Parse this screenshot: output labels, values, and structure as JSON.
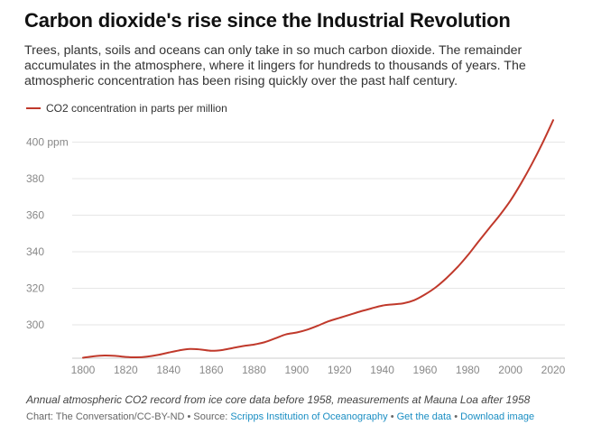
{
  "header": {
    "title": "Carbon dioxide's rise since the Industrial Revolution",
    "subtitle": "Trees, plants, soils and oceans can only take in so much carbon dioxide. The remainder accumulates in the atmosphere, where it lingers for hundreds to thousands of years. The atmospheric concentration has been rising quickly over the past half century."
  },
  "footer": {
    "note": "Annual atmospheric CO2 record from ice core data before 1958, measurements at Mauna Loa after 1958",
    "credit_prefix": "Chart: The Conversation/CC-BY-ND • Source: ",
    "source_link": "Scripps Institution of Oceanography",
    "sep1": " • ",
    "get_data": "Get the data",
    "sep2": " • ",
    "download": "Download image"
  },
  "colors": {
    "line": "#c0392b",
    "grid": "#e6e6e6",
    "link": "#1a8ec3"
  },
  "chart_data": {
    "type": "line",
    "title": "Carbon dioxide's rise since the Industrial Revolution",
    "xlabel": "",
    "ylabel": "",
    "xlim": [
      1800,
      2020
    ],
    "ylim": [
      281,
      412
    ],
    "grid": true,
    "legend_position": "top-left",
    "x_ticks": [
      1800,
      1820,
      1840,
      1860,
      1880,
      1900,
      1920,
      1940,
      1960,
      1980,
      2000,
      2020
    ],
    "y_ticks": [
      300,
      320,
      340,
      360,
      380,
      400
    ],
    "y_tick_labels": [
      "300",
      "320",
      "340",
      "360",
      "380",
      "400 ppm"
    ],
    "series": [
      {
        "name": "CO2 concentration in parts per million",
        "x": [
          1800,
          1805,
          1810,
          1815,
          1820,
          1825,
          1830,
          1835,
          1840,
          1845,
          1850,
          1855,
          1860,
          1865,
          1870,
          1875,
          1880,
          1885,
          1890,
          1895,
          1900,
          1905,
          1910,
          1915,
          1920,
          1925,
          1930,
          1935,
          1940,
          1945,
          1950,
          1955,
          1960,
          1965,
          1970,
          1975,
          1980,
          1985,
          1990,
          1995,
          2000,
          2005,
          2010,
          2015,
          2020
        ],
        "values": [
          282,
          282.8,
          283.2,
          283.0,
          282.4,
          282.2,
          282.6,
          283.5,
          284.8,
          286.0,
          286.8,
          286.5,
          285.8,
          286.2,
          287.3,
          288.4,
          289.2,
          290.5,
          292.6,
          294.8,
          295.8,
          297.4,
          299.6,
          302.0,
          303.8,
          305.6,
          307.4,
          309.0,
          310.5,
          311.2,
          311.8,
          313.5,
          316.6,
          320.5,
          325.5,
          331.3,
          338.0,
          345.5,
          352.8,
          360.0,
          368.0,
          377.5,
          388.0,
          399.5,
          412.0
        ]
      }
    ]
  }
}
